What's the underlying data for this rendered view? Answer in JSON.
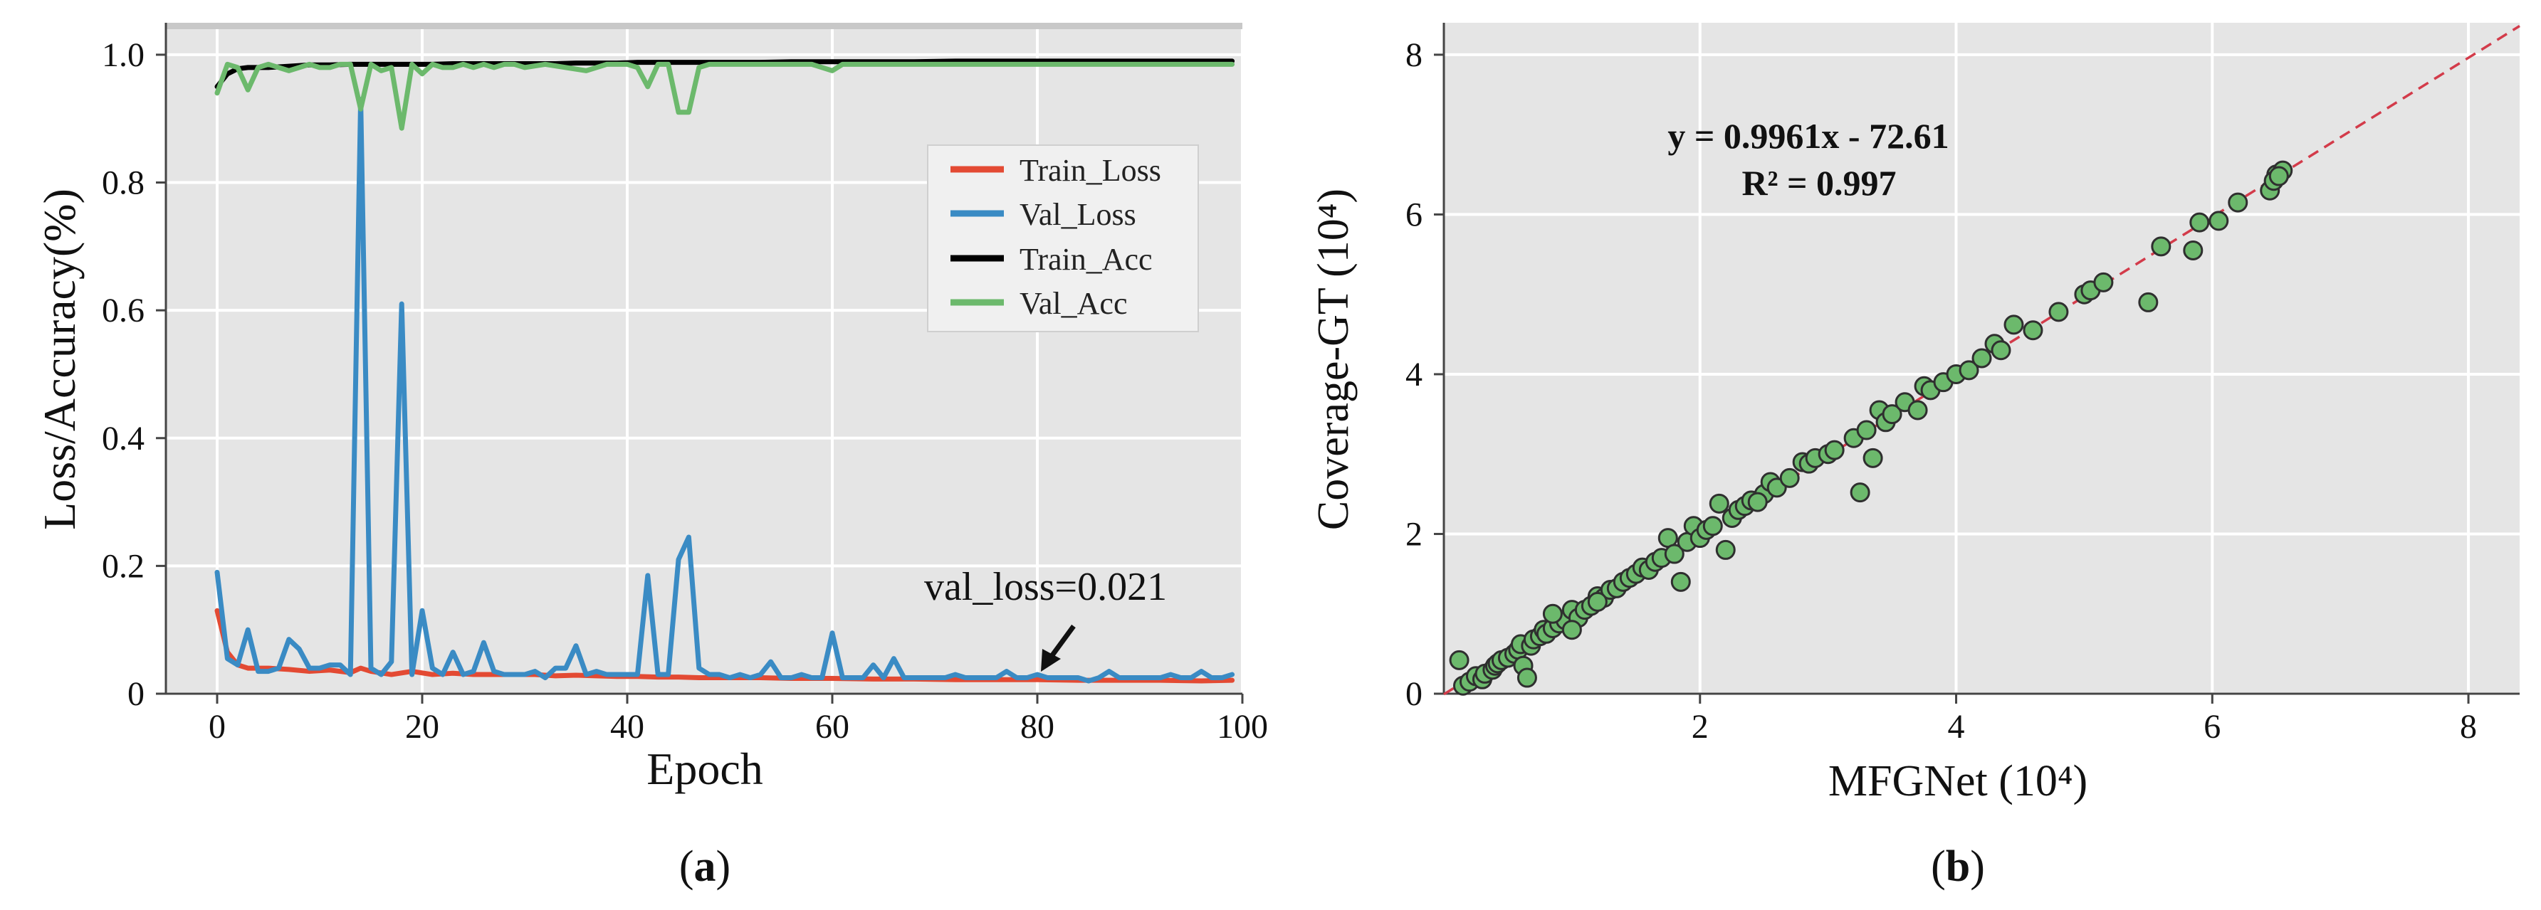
{
  "panel_a": {
    "caption_open": "(",
    "caption_letter": "a",
    "caption_close": ")",
    "annotation": "val_loss=0.021",
    "chart_data": {
      "type": "line",
      "title": "",
      "xlabel": "Epoch",
      "ylabel": "Loss/Accuracy(%)",
      "xlim": [
        -5,
        100
      ],
      "ylim": [
        0,
        1.05
      ],
      "xticks": [
        0,
        20,
        40,
        60,
        80,
        100
      ],
      "yticks": [
        0,
        0.2,
        0.4,
        0.6,
        0.8,
        1.0
      ],
      "ytick_labels": [
        "0",
        "0.2",
        "0.4",
        "0.6",
        "0.8",
        "1.0"
      ],
      "grid": true,
      "legend_position": "right",
      "series": [
        {
          "name": "Train_Loss",
          "color": "#e34a33",
          "x": [
            0,
            1,
            2,
            3,
            5,
            7,
            9,
            11,
            13,
            14,
            15,
            17,
            19,
            21,
            23,
            25,
            27,
            29,
            31,
            33,
            35,
            37,
            39,
            41,
            43,
            45,
            47,
            50,
            53,
            56,
            60,
            64,
            68,
            72,
            76,
            80,
            84,
            88,
            92,
            96,
            99
          ],
          "values": [
            0.13,
            0.065,
            0.045,
            0.04,
            0.04,
            0.038,
            0.035,
            0.037,
            0.033,
            0.04,
            0.035,
            0.03,
            0.035,
            0.03,
            0.032,
            0.03,
            0.03,
            0.03,
            0.03,
            0.028,
            0.029,
            0.028,
            0.027,
            0.027,
            0.026,
            0.026,
            0.025,
            0.025,
            0.025,
            0.024,
            0.024,
            0.023,
            0.023,
            0.022,
            0.022,
            0.022,
            0.021,
            0.021,
            0.021,
            0.02,
            0.021
          ]
        },
        {
          "name": "Val_Loss",
          "color": "#3a8bc4",
          "x": [
            0,
            1,
            2,
            3,
            4,
            5,
            6,
            7,
            8,
            9,
            10,
            11,
            12,
            13,
            14,
            15,
            16,
            17,
            18,
            19,
            20,
            21,
            22,
            23,
            24,
            25,
            26,
            27,
            28,
            29,
            30,
            31,
            32,
            33,
            34,
            35,
            36,
            37,
            38,
            39,
            40,
            41,
            42,
            43,
            44,
            45,
            46,
            47,
            48,
            49,
            50,
            51,
            52,
            53,
            54,
            55,
            56,
            57,
            58,
            59,
            60,
            61,
            62,
            63,
            64,
            65,
            66,
            67,
            68,
            69,
            70,
            71,
            72,
            73,
            74,
            75,
            76,
            77,
            78,
            79,
            80,
            81,
            82,
            83,
            84,
            85,
            86,
            87,
            88,
            89,
            90,
            91,
            92,
            93,
            94,
            95,
            96,
            97,
            98,
            99
          ],
          "values": [
            0.19,
            0.055,
            0.045,
            0.1,
            0.035,
            0.035,
            0.04,
            0.085,
            0.07,
            0.04,
            0.04,
            0.045,
            0.045,
            0.03,
            0.93,
            0.04,
            0.03,
            0.05,
            0.61,
            0.03,
            0.13,
            0.04,
            0.03,
            0.065,
            0.03,
            0.035,
            0.08,
            0.035,
            0.03,
            0.03,
            0.03,
            0.035,
            0.025,
            0.04,
            0.04,
            0.075,
            0.03,
            0.035,
            0.03,
            0.03,
            0.03,
            0.03,
            0.185,
            0.03,
            0.03,
            0.21,
            0.245,
            0.04,
            0.03,
            0.03,
            0.025,
            0.03,
            0.025,
            0.03,
            0.05,
            0.025,
            0.025,
            0.03,
            0.025,
            0.025,
            0.095,
            0.025,
            0.025,
            0.025,
            0.045,
            0.025,
            0.055,
            0.025,
            0.025,
            0.025,
            0.025,
            0.025,
            0.03,
            0.025,
            0.025,
            0.025,
            0.025,
            0.035,
            0.025,
            0.025,
            0.03,
            0.025,
            0.025,
            0.025,
            0.025,
            0.02,
            0.025,
            0.035,
            0.025,
            0.025,
            0.025,
            0.025,
            0.025,
            0.03,
            0.025,
            0.025,
            0.035,
            0.025,
            0.025,
            0.03
          ]
        },
        {
          "name": "Train_Acc",
          "color": "#000000",
          "x": [
            0,
            1,
            2,
            3,
            5,
            7,
            9,
            11,
            13,
            15,
            17,
            19,
            21,
            23,
            25,
            27,
            29,
            31,
            33,
            35,
            37,
            39,
            41,
            43,
            45,
            47,
            50,
            53,
            56,
            60,
            64,
            68,
            72,
            76,
            80,
            84,
            88,
            92,
            96,
            99
          ],
          "values": [
            0.95,
            0.97,
            0.978,
            0.98,
            0.98,
            0.982,
            0.984,
            0.984,
            0.985,
            0.985,
            0.985,
            0.985,
            0.985,
            0.986,
            0.986,
            0.986,
            0.986,
            0.986,
            0.986,
            0.987,
            0.987,
            0.987,
            0.988,
            0.988,
            0.988,
            0.988,
            0.988,
            0.988,
            0.989,
            0.989,
            0.989,
            0.989,
            0.99,
            0.99,
            0.99,
            0.99,
            0.99,
            0.99,
            0.99,
            0.99
          ]
        },
        {
          "name": "Val_Acc",
          "color": "#6cb96c",
          "x": [
            0,
            1,
            2,
            3,
            4,
            5,
            6,
            7,
            8,
            9,
            10,
            11,
            12,
            13,
            14,
            15,
            16,
            17,
            18,
            19,
            20,
            21,
            22,
            23,
            24,
            25,
            26,
            27,
            28,
            29,
            30,
            32,
            34,
            36,
            38,
            40,
            41,
            42,
            43,
            44,
            45,
            46,
            47,
            48,
            50,
            52,
            54,
            56,
            58,
            60,
            61,
            62,
            64,
            66,
            68,
            70,
            72,
            74,
            76,
            78,
            80,
            82,
            84,
            86,
            88,
            90,
            92,
            94,
            96,
            98,
            99
          ],
          "values": [
            0.94,
            0.985,
            0.98,
            0.945,
            0.98,
            0.985,
            0.98,
            0.975,
            0.98,
            0.985,
            0.98,
            0.98,
            0.985,
            0.985,
            0.915,
            0.985,
            0.975,
            0.98,
            0.885,
            0.985,
            0.97,
            0.985,
            0.98,
            0.98,
            0.985,
            0.98,
            0.985,
            0.98,
            0.985,
            0.985,
            0.98,
            0.985,
            0.98,
            0.975,
            0.985,
            0.985,
            0.98,
            0.95,
            0.985,
            0.985,
            0.91,
            0.91,
            0.98,
            0.985,
            0.985,
            0.985,
            0.985,
            0.985,
            0.985,
            0.975,
            0.985,
            0.985,
            0.985,
            0.985,
            0.985,
            0.985,
            0.985,
            0.985,
            0.985,
            0.985,
            0.985,
            0.985,
            0.985,
            0.985,
            0.985,
            0.985,
            0.985,
            0.985,
            0.985,
            0.985,
            0.985
          ]
        }
      ]
    }
  },
  "panel_b": {
    "caption_open": "(",
    "caption_letter": "b",
    "caption_close": ")",
    "equation": "y = 0.9961x - 72.61",
    "r_squared": "R² = 0.997",
    "chart_data": {
      "type": "scatter",
      "title": "",
      "xlabel": "MFGNet (10⁴)",
      "ylabel": "Coverage-GT (10⁴)",
      "xlim": [
        0,
        8.4
      ],
      "ylim": [
        0,
        8.4
      ],
      "xticks": [
        2,
        4,
        6,
        8
      ],
      "yticks": [
        0,
        2,
        4,
        6,
        8
      ],
      "grid": true,
      "point_color": "#6cb96c",
      "fit_line": {
        "slope": 0.9961,
        "intercept": -0.007261,
        "color": "#d33b4a",
        "style": "dashed"
      },
      "points": [
        [
          0.12,
          0.42
        ],
        [
          0.15,
          0.1
        ],
        [
          0.2,
          0.15
        ],
        [
          0.25,
          0.22
        ],
        [
          0.3,
          0.18
        ],
        [
          0.32,
          0.25
        ],
        [
          0.38,
          0.3
        ],
        [
          0.4,
          0.35
        ],
        [
          0.42,
          0.38
        ],
        [
          0.45,
          0.42
        ],
        [
          0.5,
          0.45
        ],
        [
          0.55,
          0.5
        ],
        [
          0.58,
          0.55
        ],
        [
          0.6,
          0.62
        ],
        [
          0.62,
          0.35
        ],
        [
          0.65,
          0.2
        ],
        [
          0.68,
          0.6
        ],
        [
          0.7,
          0.68
        ],
        [
          0.75,
          0.72
        ],
        [
          0.78,
          0.8
        ],
        [
          0.8,
          0.75
        ],
        [
          0.85,
          0.82
        ],
        [
          0.9,
          0.88
        ],
        [
          0.95,
          0.92
        ],
        [
          1.0,
          1.05
        ],
        [
          1.05,
          0.95
        ],
        [
          1.1,
          1.05
        ],
        [
          1.15,
          1.1
        ],
        [
          1.2,
          1.22
        ],
        [
          1.25,
          1.2
        ],
        [
          1.3,
          1.3
        ],
        [
          1.35,
          1.32
        ],
        [
          1.4,
          1.4
        ],
        [
          1.45,
          1.45
        ],
        [
          1.5,
          1.5
        ],
        [
          1.55,
          1.58
        ],
        [
          1.6,
          1.55
        ],
        [
          1.65,
          1.65
        ],
        [
          1.7,
          1.7
        ],
        [
          1.75,
          1.95
        ],
        [
          1.8,
          1.75
        ],
        [
          1.85,
          1.4
        ],
        [
          1.9,
          1.9
        ],
        [
          1.95,
          2.1
        ],
        [
          2.0,
          1.95
        ],
        [
          2.05,
          2.05
        ],
        [
          2.1,
          2.1
        ],
        [
          2.15,
          2.38
        ],
        [
          2.2,
          1.8
        ],
        [
          2.25,
          2.2
        ],
        [
          2.3,
          2.3
        ],
        [
          2.35,
          2.35
        ],
        [
          2.4,
          2.42
        ],
        [
          2.5,
          2.5
        ],
        [
          2.55,
          2.65
        ],
        [
          2.6,
          2.58
        ],
        [
          2.7,
          2.7
        ],
        [
          2.8,
          2.9
        ],
        [
          2.85,
          2.88
        ],
        [
          2.9,
          2.95
        ],
        [
          3.0,
          3.0
        ],
        [
          3.05,
          3.05
        ],
        [
          3.2,
          3.2
        ],
        [
          3.25,
          2.52
        ],
        [
          3.3,
          3.3
        ],
        [
          3.35,
          2.95
        ],
        [
          3.4,
          3.55
        ],
        [
          3.45,
          3.4
        ],
        [
          3.5,
          3.5
        ],
        [
          3.6,
          3.65
        ],
        [
          3.7,
          3.55
        ],
        [
          3.75,
          3.85
        ],
        [
          3.8,
          3.8
        ],
        [
          3.9,
          3.9
        ],
        [
          4.0,
          4.0
        ],
        [
          4.1,
          4.05
        ],
        [
          4.2,
          4.2
        ],
        [
          4.3,
          4.38
        ],
        [
          4.35,
          4.3
        ],
        [
          4.45,
          4.62
        ],
        [
          4.6,
          4.55
        ],
        [
          4.8,
          4.78
        ],
        [
          5.0,
          5.0
        ],
        [
          5.05,
          5.05
        ],
        [
          5.15,
          5.15
        ],
        [
          5.5,
          4.9
        ],
        [
          5.6,
          5.6
        ],
        [
          5.85,
          5.55
        ],
        [
          5.9,
          5.9
        ],
        [
          6.05,
          5.92
        ],
        [
          6.2,
          6.15
        ],
        [
          6.45,
          6.3
        ],
        [
          6.5,
          6.5
        ],
        [
          6.55,
          6.55
        ],
        [
          6.48,
          6.42
        ],
        [
          6.52,
          6.48
        ],
        [
          1.0,
          0.8
        ],
        [
          0.85,
          1.0
        ],
        [
          1.2,
          1.15
        ],
        [
          2.45,
          2.4
        ]
      ]
    }
  }
}
